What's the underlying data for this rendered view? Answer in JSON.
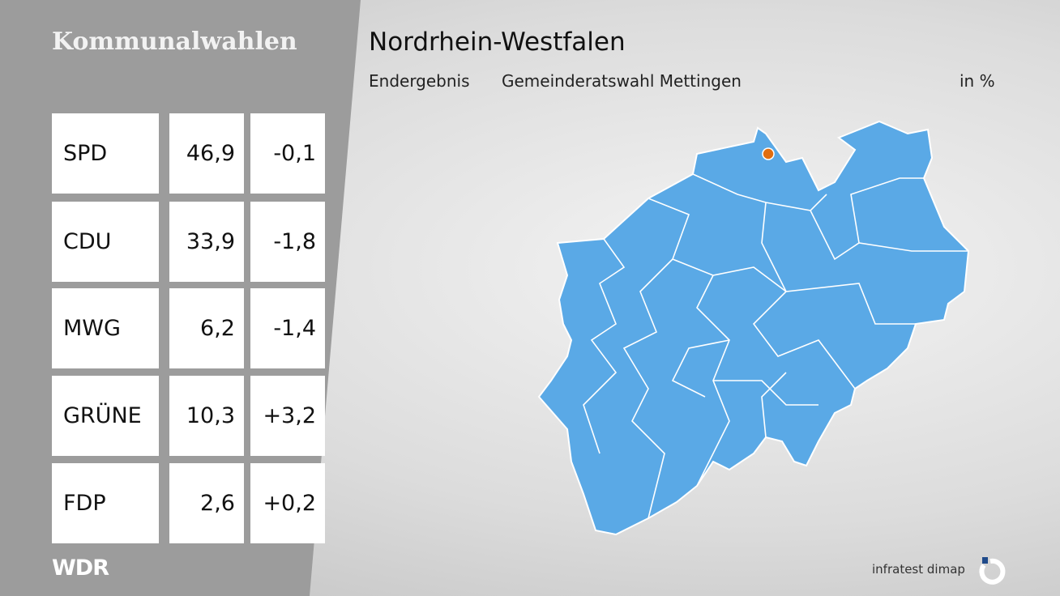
{
  "header": {
    "section": "Kommunalwahlen",
    "title": "Nordrhein-Westfalen",
    "status": "Endergebnis",
    "election": "Gemeinderatswahl Mettingen",
    "unit": "in %"
  },
  "table": {
    "rows": [
      [
        "SPD",
        "46,9",
        "-0,1"
      ],
      [
        "CDU",
        "33,9",
        "-1,8"
      ],
      [
        "MWG",
        "6,2",
        "-1,4"
      ],
      [
        "GRÜNE",
        "10,3",
        "+3,2"
      ],
      [
        "FDP",
        "2,6",
        "+0,2"
      ]
    ]
  },
  "footer": {
    "broadcaster": "WDR",
    "source": "infratest dimap"
  }
}
